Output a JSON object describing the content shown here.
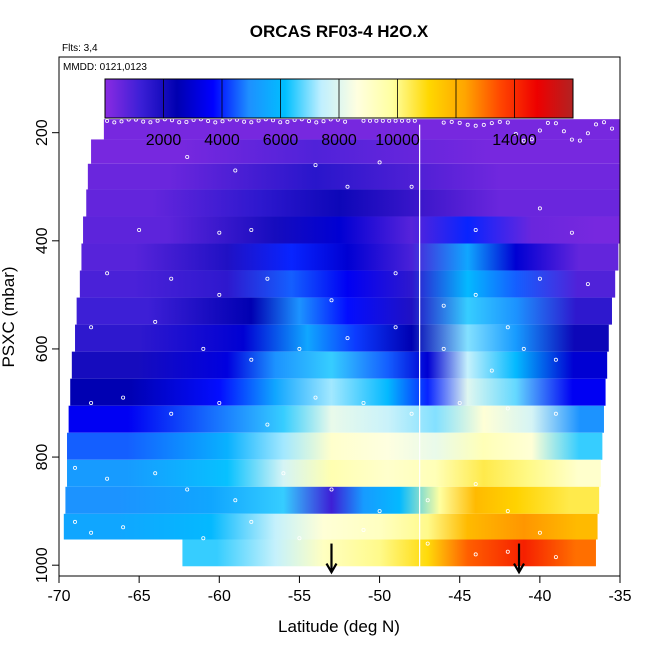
{
  "chart_data": {
    "type": "heatmap",
    "title": "ORCAS RF03-4 H2O.X",
    "subtitle_flights": "Flts: 3,4",
    "subtitle_dates": "MMDD: 0121,0123",
    "xlabel": "Latitude (deg N)",
    "ylabel": "PSXC (mbar)",
    "xlim": [
      -70,
      -35
    ],
    "ylim": [
      1020,
      60
    ],
    "y_reversed": true,
    "x_ticks": [
      "-70",
      "-65",
      "-60",
      "-55",
      "-50",
      "-45",
      "-40",
      "-35"
    ],
    "x_tick_values": [
      -70,
      -65,
      -60,
      -55,
      -50,
      -45,
      -40,
      -35
    ],
    "y_ticks": [
      "200",
      "400",
      "600",
      "800",
      "1000"
    ],
    "y_tick_values": [
      200,
      400,
      600,
      800,
      1000
    ],
    "colorbar": {
      "range": [
        0,
        16000
      ],
      "tick_labels": [
        "2000",
        "4000",
        "6000",
        "8000",
        "10000",
        "14000"
      ],
      "tick_values": [
        2000,
        4000,
        6000,
        8000,
        10000,
        14000
      ],
      "colors": [
        "#8a2be2",
        "#3b1fd6",
        "#0000b0",
        "#0000ff",
        "#1e90ff",
        "#00bfff",
        "#bfefff",
        "#ffffe0",
        "#ffff9f",
        "#ffd700",
        "#ffa500",
        "#ff4500",
        "#ee0000",
        "#b22222"
      ]
    },
    "divider_latitude": -47.5,
    "arrows_latitude": [
      -53,
      -41.3
    ],
    "series": [
      {
        "p": 190,
        "x0": -67.2,
        "x1": -35,
        "segs": [
          [
            -67.2,
            -35,
            300
          ]
        ]
      },
      {
        "p": 235,
        "x0": -68.0,
        "x1": -35,
        "segs": [
          [
            -68,
            -57,
            300
          ],
          [
            -57,
            -51,
            900
          ],
          [
            -51,
            -35,
            300
          ]
        ]
      },
      {
        "p": 280,
        "x0": -68.2,
        "x1": -35,
        "segs": [
          [
            -68.2,
            -58,
            500
          ],
          [
            -58,
            -50,
            1600
          ],
          [
            -50,
            -35,
            400
          ]
        ]
      },
      {
        "p": 330,
        "x0": -68.3,
        "x1": -35,
        "segs": [
          [
            -68.3,
            -60,
            600
          ],
          [
            -60,
            -55,
            1500
          ],
          [
            -55,
            -50,
            2200
          ],
          [
            -50,
            -35,
            500
          ]
        ]
      },
      {
        "p": 380,
        "x0": -68.5,
        "x1": -35,
        "segs": [
          [
            -68.5,
            -58,
            700
          ],
          [
            -58,
            -55,
            2000
          ],
          [
            -55,
            -50,
            3000
          ],
          [
            -50,
            -46,
            800
          ],
          [
            -46,
            -43,
            4000
          ],
          [
            -43,
            -38,
            500
          ],
          [
            -38,
            -35,
            300
          ]
        ]
      },
      {
        "p": 430,
        "x0": -68.6,
        "x1": -35.1,
        "segs": [
          [
            -68.6,
            -62,
            800
          ],
          [
            -62,
            -57,
            1800
          ],
          [
            -57,
            -54,
            4000
          ],
          [
            -54,
            -50,
            3000
          ],
          [
            -50,
            -46,
            1000
          ],
          [
            -46,
            -43,
            5500
          ],
          [
            -43,
            -40,
            3000
          ],
          [
            -40,
            -35.1,
            600
          ]
        ]
      },
      {
        "p": 480,
        "x0": -68.7,
        "x1": -35.3,
        "segs": [
          [
            -68.7,
            -62,
            1000
          ],
          [
            -62,
            -57,
            1500
          ],
          [
            -57,
            -54,
            4500
          ],
          [
            -54,
            -50,
            3500
          ],
          [
            -50,
            -46,
            1500
          ],
          [
            -46,
            -43,
            6000
          ],
          [
            -43,
            -40,
            4500
          ],
          [
            -40,
            -35.3,
            900
          ]
        ]
      },
      {
        "p": 530,
        "x0": -68.9,
        "x1": -35.5,
        "segs": [
          [
            -68.9,
            -60,
            1200
          ],
          [
            -60,
            -56,
            2500
          ],
          [
            -56,
            -54,
            5000
          ],
          [
            -54,
            -50,
            3800
          ],
          [
            -50,
            -46,
            1800
          ],
          [
            -46,
            -43,
            6500
          ],
          [
            -43,
            -40,
            5000
          ],
          [
            -40,
            -35.5,
            1500
          ]
        ]
      },
      {
        "p": 580,
        "x0": -69.0,
        "x1": -35.7,
        "segs": [
          [
            -69,
            -61,
            1500
          ],
          [
            -61,
            -56,
            3000
          ],
          [
            -56,
            -53,
            5500
          ],
          [
            -53,
            -50,
            4200
          ],
          [
            -50,
            -46,
            2500
          ],
          [
            -46,
            -43,
            7000
          ],
          [
            -43,
            -40,
            5200
          ],
          [
            -40,
            -35.7,
            2200
          ]
        ]
      },
      {
        "p": 630,
        "x0": -69.2,
        "x1": -35.8,
        "segs": [
          [
            -69.2,
            -61,
            2000
          ],
          [
            -61,
            -58,
            3200
          ],
          [
            -58,
            -55,
            5000
          ],
          [
            -55,
            -51,
            6500
          ],
          [
            -51,
            -48,
            4500
          ],
          [
            -48,
            -46,
            3000
          ],
          [
            -46,
            -43,
            7500
          ],
          [
            -43,
            -40,
            6000
          ],
          [
            -40,
            -35.8,
            3000
          ]
        ]
      },
      {
        "p": 680,
        "x0": -69.3,
        "x1": -35.9,
        "segs": [
          [
            -69.3,
            -62,
            2500
          ],
          [
            -62,
            -58,
            3800
          ],
          [
            -58,
            -55,
            5500
          ],
          [
            -55,
            -51,
            7200
          ],
          [
            -51,
            -48,
            6000
          ],
          [
            -48,
            -46,
            4000
          ],
          [
            -46,
            -43,
            8000
          ],
          [
            -43,
            -40,
            6800
          ],
          [
            -40,
            -35.9,
            3500
          ]
        ]
      },
      {
        "p": 730,
        "x0": -69.4,
        "x1": -36.0,
        "segs": [
          [
            -69.4,
            -62,
            3500
          ],
          [
            -62,
            -57,
            4800
          ],
          [
            -57,
            -55,
            6500
          ],
          [
            -55,
            -51,
            8200
          ],
          [
            -51,
            -48,
            7600
          ],
          [
            -48,
            -45,
            7000
          ],
          [
            -45,
            -42,
            8800
          ],
          [
            -42,
            -39,
            7800
          ],
          [
            -39,
            -36,
            5000
          ]
        ]
      },
      {
        "p": 780,
        "x0": -69.5,
        "x1": -36.1,
        "segs": [
          [
            -69.5,
            -62,
            4500
          ],
          [
            -62,
            -57,
            5800
          ],
          [
            -57,
            -55,
            7200
          ],
          [
            -55,
            -51,
            9000
          ],
          [
            -51,
            -48,
            8600
          ],
          [
            -48,
            -45,
            8200
          ],
          [
            -45,
            -42,
            9400
          ],
          [
            -42,
            -39,
            8800
          ],
          [
            -39,
            -36.1,
            6500
          ]
        ]
      },
      {
        "p": 830,
        "x0": -69.5,
        "x1": -36.2,
        "segs": [
          [
            -69.5,
            -62,
            5200
          ],
          [
            -62,
            -57,
            6200
          ],
          [
            -57,
            -55,
            7800
          ],
          [
            -55,
            -51,
            9500
          ],
          [
            -51,
            -48,
            9000
          ],
          [
            -48,
            -45,
            9400
          ],
          [
            -45,
            -42,
            10500
          ],
          [
            -42,
            -39,
            10000
          ],
          [
            -39,
            -36.2,
            9000
          ]
        ]
      },
      {
        "p": 880,
        "x0": -69.6,
        "x1": -36.3,
        "segs": [
          [
            -69.6,
            -63,
            5000
          ],
          [
            -63,
            -58,
            5500
          ],
          [
            -58,
            -54,
            6500
          ],
          [
            -54,
            -52,
            1200
          ],
          [
            -52,
            -50,
            5200
          ],
          [
            -50,
            -47.5,
            6000
          ],
          [
            -47.5,
            -45,
            9800
          ],
          [
            -45,
            -43,
            11800
          ],
          [
            -43,
            -40,
            11200
          ],
          [
            -40,
            -36.3,
            10500
          ]
        ]
      },
      {
        "p": 930,
        "x0": -69.7,
        "x1": -36.4,
        "segs": [
          [
            -69.7,
            -63,
            5500
          ],
          [
            -63,
            -58,
            6000
          ],
          [
            -58,
            -55,
            7500
          ],
          [
            -55,
            -52,
            8800
          ],
          [
            -52,
            -48,
            9200
          ],
          [
            -48,
            -46,
            10000
          ],
          [
            -46,
            -43,
            11800
          ],
          [
            -43,
            -39,
            12500
          ],
          [
            -39,
            -36.4,
            11800
          ]
        ]
      },
      {
        "p": 975,
        "x0": -62.3,
        "x1": -36.5,
        "segs": [
          [
            -62.3,
            -58,
            6500
          ],
          [
            -58,
            -55,
            7500
          ],
          [
            -55,
            -52,
            9200
          ],
          [
            -52,
            -48,
            10000
          ],
          [
            -48,
            -46,
            11000
          ],
          [
            -46,
            -43,
            13200
          ],
          [
            -43,
            -39,
            14200
          ],
          [
            -39,
            -36.5,
            13000
          ]
        ]
      }
    ]
  }
}
